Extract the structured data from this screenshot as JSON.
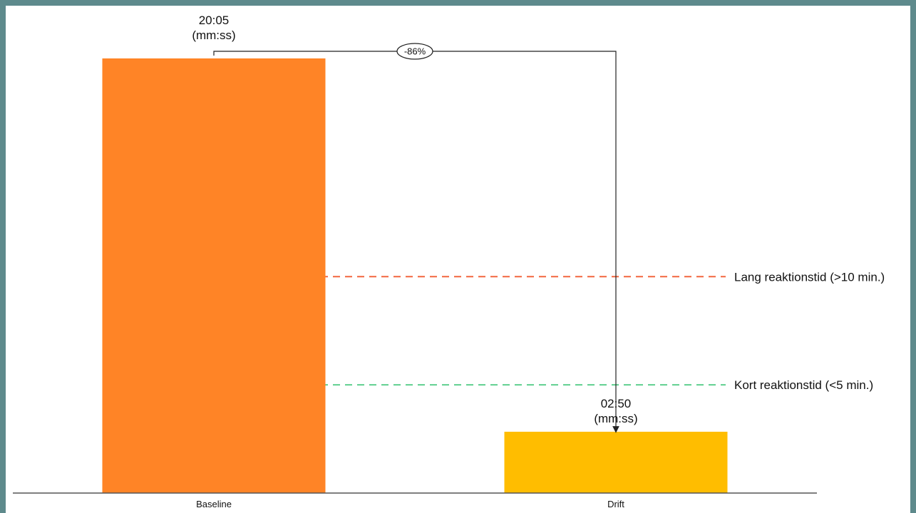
{
  "chart_data": {
    "type": "bar",
    "categories": [
      "Baseline",
      "Drift"
    ],
    "values": [
      1205,
      170
    ],
    "value_labels": [
      [
        "20:05",
        "(mm:ss)"
      ],
      [
        "02:50",
        "(mm:ss)"
      ]
    ],
    "bar_colors": [
      "#ff8426",
      "#ffbd00"
    ],
    "ylim": [
      0,
      1205
    ],
    "grid": false,
    "reference_lines": [
      {
        "value": 600,
        "label": "Lang reaktionstid (>10 min.)",
        "color": "#f2673f"
      },
      {
        "value": 300,
        "label": "Kort reaktionstid (<5 min.)",
        "color": "#5fcf8f"
      }
    ],
    "change_annotation": {
      "label": "-86%",
      "from": "Baseline",
      "to": "Drift"
    }
  },
  "colors": {
    "frame": "#5e8a8c",
    "axis": "#555555",
    "connector": "#222222"
  }
}
